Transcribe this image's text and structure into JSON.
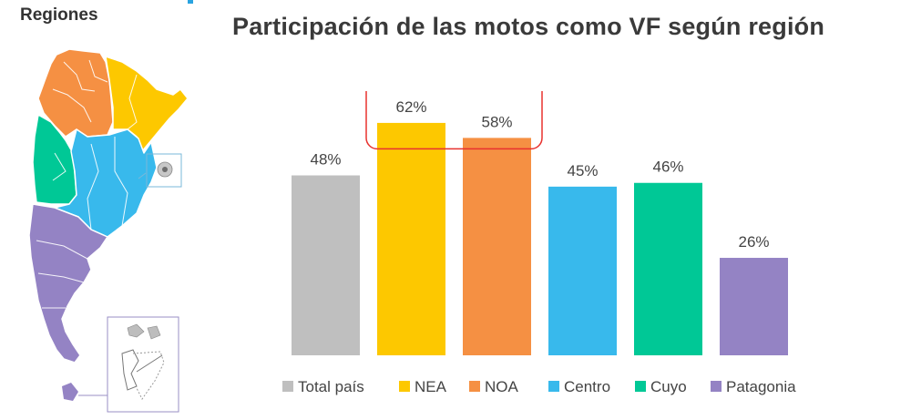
{
  "map": {
    "title": "Regiones",
    "regions": [
      {
        "name": "NOA",
        "color": "#f59043"
      },
      {
        "name": "NEA",
        "color": "#fdc800"
      },
      {
        "name": "Cuyo",
        "color": "#00c896"
      },
      {
        "name": "Centro",
        "color": "#38b9ec"
      },
      {
        "name": "Patagonia",
        "color": "#9483c4"
      }
    ]
  },
  "chart_data": {
    "type": "bar",
    "title": "Participación de las motos como VF según región",
    "categories": [
      "Total país",
      "NEA",
      "NOA",
      "Centro",
      "Cuyo",
      "Patagonia"
    ],
    "values": [
      48,
      62,
      58,
      45,
      46,
      26
    ],
    "value_labels": [
      "48%",
      "62%",
      "58%",
      "45%",
      "46%",
      "26%"
    ],
    "colors": [
      "#bfbfbf",
      "#fdc800",
      "#f59043",
      "#38b9ec",
      "#00c896",
      "#9483c4"
    ],
    "unit": "%",
    "ylim": [
      0,
      70
    ],
    "grid": false,
    "legend": "bottom",
    "highlight": {
      "categories": [
        "NEA",
        "NOA"
      ],
      "color": "#e8322f"
    }
  }
}
